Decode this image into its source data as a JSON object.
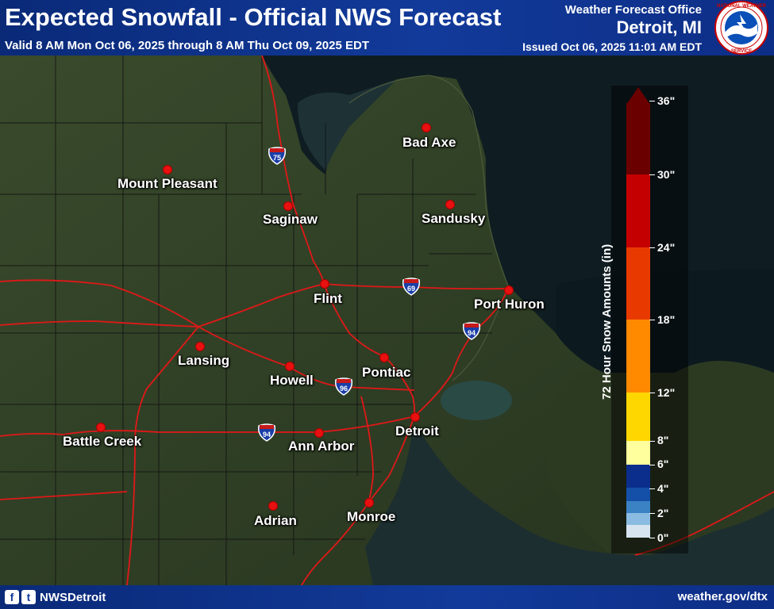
{
  "header": {
    "title": "Expected Snowfall - Official NWS Forecast",
    "valid": "Valid 8 AM Mon Oct 06, 2025 through 8 AM Thu Oct 09, 2025 EDT",
    "office_label": "Weather Forecast Office",
    "office_name": "Detroit, MI",
    "issued": "Issued Oct 06, 2025 11:01 AM EDT",
    "logo_icon": "nws-logo-icon"
  },
  "cities": [
    {
      "name": "Bad Axe"
    },
    {
      "name": "Mount Pleasant"
    },
    {
      "name": "Saginaw"
    },
    {
      "name": "Sandusky"
    },
    {
      "name": "Flint"
    },
    {
      "name": "Port Huron"
    },
    {
      "name": "Lansing"
    },
    {
      "name": "Howell"
    },
    {
      "name": "Pontiac"
    },
    {
      "name": "Battle Creek"
    },
    {
      "name": "Ann Arbor"
    },
    {
      "name": "Detroit"
    },
    {
      "name": "Adrian"
    },
    {
      "name": "Monroe"
    }
  ],
  "highways": [
    "75",
    "69",
    "94",
    "96",
    "94"
  ],
  "legend": {
    "title": "72 Hour Snow Amounts (in)",
    "ticks": [
      "36\"",
      "30\"",
      "24\"",
      "18\"",
      "12\"",
      "8\"",
      "6\"",
      "4\"",
      "2\"",
      "0\""
    ],
    "colors": [
      "#d6e4ef",
      "#8bbbe0",
      "#3b82c4",
      "#1450a8",
      "#0b2d8c",
      "#ffff9e",
      "#ffd700",
      "#ffae00",
      "#ff7f00",
      "#e83a00",
      "#c40000",
      "#8a0000",
      "#5a0000"
    ]
  },
  "footer": {
    "handle": "NWSDetroit",
    "website": "weather.gov/dtx",
    "facebook_icon": "f",
    "twitter_icon": "t"
  },
  "colors": {
    "header_bg": "#123a9a",
    "highway": "#e01818",
    "city_dot": "#e81010"
  }
}
